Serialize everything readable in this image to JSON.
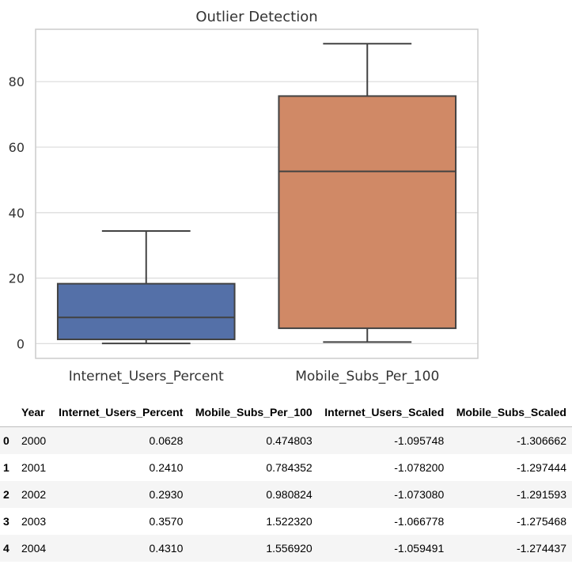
{
  "chart_data": {
    "type": "box",
    "title": "Outlier Detection",
    "xlabel": "",
    "ylabel": "",
    "ylim": [
      -4.5,
      96
    ],
    "yticks": [
      0,
      20,
      40,
      60,
      80
    ],
    "grid": true,
    "categories": [
      "Internet_Users_Percent",
      "Mobile_Subs_Per_100"
    ],
    "boxes": [
      {
        "name": "Internet_Users_Percent",
        "whisker_low": 0.06,
        "q1": 1.3,
        "median": 8.0,
        "q3": 18.3,
        "whisker_high": 34.4,
        "color": "#5470a8"
      },
      {
        "name": "Mobile_Subs_Per_100",
        "whisker_low": 0.47,
        "q1": 4.7,
        "median": 52.6,
        "q3": 75.6,
        "whisker_high": 91.6,
        "color": "#d08966"
      }
    ]
  },
  "table": {
    "columns": [
      "",
      "Year",
      "Internet_Users_Percent",
      "Mobile_Subs_Per_100",
      "Internet_Users_Scaled",
      "Mobile_Subs_Scaled"
    ],
    "rows": [
      [
        "0",
        "2000",
        "0.0628",
        "0.474803",
        "-1.095748",
        "-1.306662"
      ],
      [
        "1",
        "2001",
        "0.2410",
        "0.784352",
        "-1.078200",
        "-1.297444"
      ],
      [
        "2",
        "2002",
        "0.2930",
        "0.980824",
        "-1.073080",
        "-1.291593"
      ],
      [
        "3",
        "2003",
        "0.3570",
        "1.522320",
        "-1.066778",
        "-1.275468"
      ],
      [
        "4",
        "2004",
        "0.4310",
        "1.556920",
        "-1.059491",
        "-1.274437"
      ]
    ]
  }
}
